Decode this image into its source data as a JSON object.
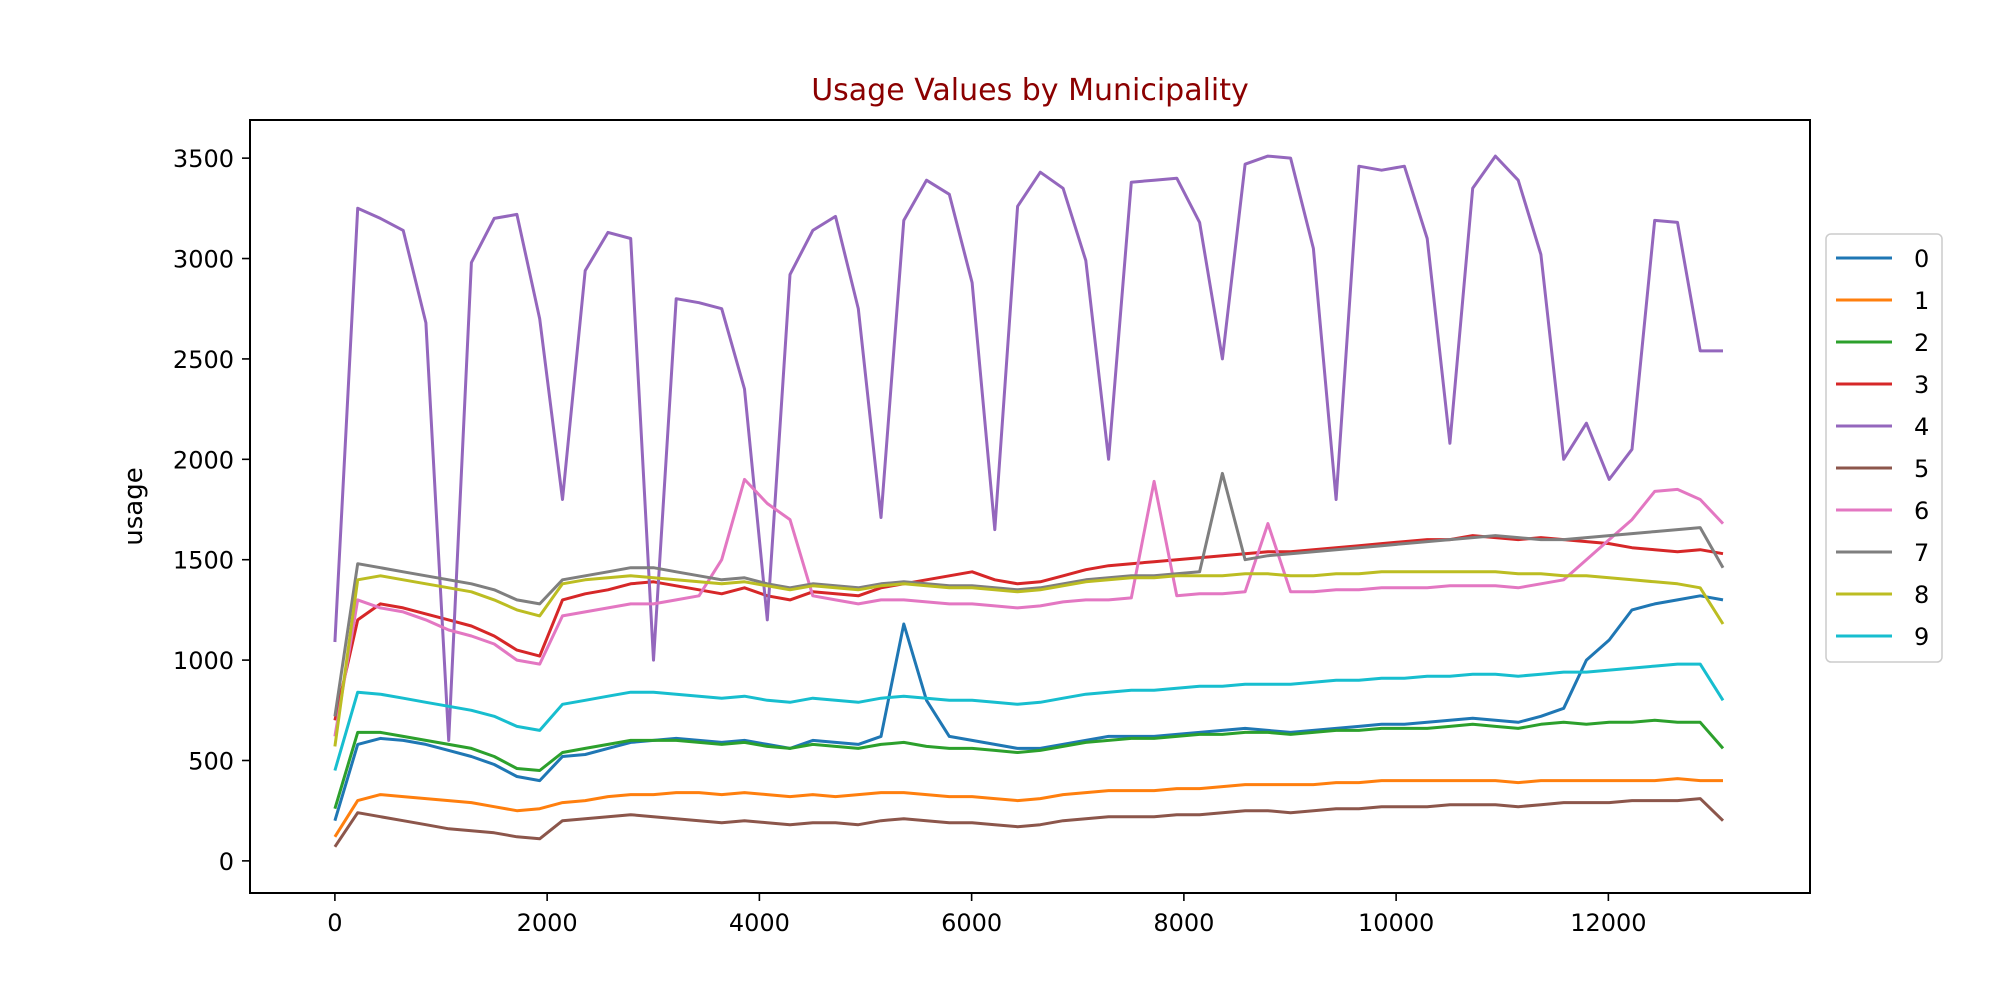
{
  "chart_data": {
    "type": "line",
    "title": "Usage Values by Municipality",
    "title_color": "#8b0000",
    "xlabel": "",
    "ylabel": "usage",
    "xlim": [
      -800,
      13900
    ],
    "ylim": [
      -160,
      3690
    ],
    "x_ticks": [
      0,
      2000,
      4000,
      6000,
      8000,
      10000,
      12000
    ],
    "y_ticks": [
      0,
      500,
      1000,
      1500,
      2000,
      2500,
      3000,
      3500
    ],
    "legend_position": "right-outside",
    "grid": false,
    "x_max_data": 13080,
    "series": [
      {
        "name": "0",
        "color": "#1f77b4",
        "values": [
          200,
          580,
          610,
          600,
          580,
          550,
          520,
          480,
          420,
          400,
          520,
          530,
          560,
          590,
          600,
          610,
          600,
          590,
          600,
          580,
          560,
          600,
          590,
          580,
          620,
          1180,
          800,
          620,
          600,
          580,
          560,
          560,
          580,
          600,
          620,
          620,
          620,
          630,
          640,
          650,
          660,
          650,
          640,
          650,
          660,
          670,
          680,
          680,
          690,
          700,
          710,
          700,
          690,
          720,
          760,
          1000,
          1100,
          1250,
          1280,
          1300,
          1320,
          1300
        ]
      },
      {
        "name": "1",
        "color": "#ff7f0e",
        "values": [
          120,
          300,
          330,
          320,
          310,
          300,
          290,
          270,
          250,
          260,
          290,
          300,
          320,
          330,
          330,
          340,
          340,
          330,
          340,
          330,
          320,
          330,
          320,
          330,
          340,
          340,
          330,
          320,
          320,
          310,
          300,
          310,
          330,
          340,
          350,
          350,
          350,
          360,
          360,
          370,
          380,
          380,
          380,
          380,
          390,
          390,
          400,
          400,
          400,
          400,
          400,
          400,
          390,
          400,
          400,
          400,
          400,
          400,
          400,
          410,
          400,
          400
        ]
      },
      {
        "name": "2",
        "color": "#2ca02c",
        "values": [
          260,
          640,
          640,
          620,
          600,
          580,
          560,
          520,
          460,
          450,
          540,
          560,
          580,
          600,
          600,
          600,
          590,
          580,
          590,
          570,
          560,
          580,
          570,
          560,
          580,
          590,
          570,
          560,
          560,
          550,
          540,
          550,
          570,
          590,
          600,
          610,
          610,
          620,
          630,
          630,
          640,
          640,
          630,
          640,
          650,
          650,
          660,
          660,
          660,
          670,
          680,
          670,
          660,
          680,
          690,
          680,
          690,
          690,
          700,
          690,
          690,
          560
        ]
      },
      {
        "name": "3",
        "color": "#d62728",
        "values": [
          700,
          1200,
          1280,
          1260,
          1230,
          1200,
          1170,
          1120,
          1050,
          1020,
          1300,
          1330,
          1350,
          1380,
          1390,
          1370,
          1350,
          1330,
          1360,
          1320,
          1300,
          1340,
          1330,
          1320,
          1360,
          1380,
          1400,
          1420,
          1440,
          1400,
          1380,
          1390,
          1420,
          1450,
          1470,
          1480,
          1490,
          1500,
          1510,
          1520,
          1530,
          1540,
          1540,
          1550,
          1560,
          1570,
          1580,
          1590,
          1600,
          1600,
          1620,
          1610,
          1600,
          1610,
          1600,
          1590,
          1580,
          1560,
          1550,
          1540,
          1550,
          1530
        ]
      },
      {
        "name": "4",
        "color": "#9467bd",
        "values": [
          1090,
          3250,
          3200,
          3140,
          2680,
          600,
          2980,
          3200,
          3220,
          2700,
          1800,
          2940,
          3130,
          3100,
          1000,
          2800,
          2780,
          2750,
          2350,
          1200,
          2920,
          3140,
          3210,
          2750,
          1710,
          3190,
          3390,
          3320,
          2880,
          1650,
          3260,
          3430,
          3350,
          2990,
          2000,
          3380,
          3390,
          3400,
          3180,
          2500,
          3470,
          3510,
          3500,
          3050,
          1800,
          3460,
          3440,
          3460,
          3100,
          2080,
          3350,
          3510,
          3390,
          3020,
          2000,
          2180,
          1900,
          2050,
          3190,
          3180,
          2540,
          2540
        ]
      },
      {
        "name": "5",
        "color": "#8c564b",
        "values": [
          70,
          240,
          220,
          200,
          180,
          160,
          150,
          140,
          120,
          110,
          200,
          210,
          220,
          230,
          220,
          210,
          200,
          190,
          200,
          190,
          180,
          190,
          190,
          180,
          200,
          210,
          200,
          190,
          190,
          180,
          170,
          180,
          200,
          210,
          220,
          220,
          220,
          230,
          230,
          240,
          250,
          250,
          240,
          250,
          260,
          260,
          270,
          270,
          270,
          280,
          280,
          280,
          270,
          280,
          290,
          290,
          290,
          300,
          300,
          300,
          310,
          200
        ]
      },
      {
        "name": "6",
        "color": "#e377c2",
        "values": [
          620,
          1300,
          1260,
          1240,
          1200,
          1150,
          1120,
          1080,
          1000,
          980,
          1220,
          1240,
          1260,
          1280,
          1280,
          1300,
          1320,
          1500,
          1900,
          1780,
          1700,
          1320,
          1300,
          1280,
          1300,
          1300,
          1290,
          1280,
          1280,
          1270,
          1260,
          1270,
          1290,
          1300,
          1300,
          1310,
          1890,
          1320,
          1330,
          1330,
          1340,
          1680,
          1340,
          1340,
          1350,
          1350,
          1360,
          1360,
          1360,
          1370,
          1370,
          1370,
          1360,
          1380,
          1400,
          1500,
          1600,
          1700,
          1840,
          1850,
          1800,
          1680
        ]
      },
      {
        "name": "7",
        "color": "#7f7f7f",
        "values": [
          720,
          1480,
          1460,
          1440,
          1420,
          1400,
          1380,
          1350,
          1300,
          1280,
          1400,
          1420,
          1440,
          1460,
          1460,
          1440,
          1420,
          1400,
          1410,
          1380,
          1360,
          1380,
          1370,
          1360,
          1380,
          1390,
          1380,
          1370,
          1370,
          1360,
          1350,
          1360,
          1380,
          1400,
          1410,
          1420,
          1420,
          1430,
          1440,
          1930,
          1500,
          1520,
          1530,
          1540,
          1550,
          1560,
          1570,
          1580,
          1590,
          1600,
          1610,
          1620,
          1610,
          1600,
          1600,
          1610,
          1620,
          1630,
          1640,
          1650,
          1660,
          1460
        ]
      },
      {
        "name": "8",
        "color": "#bcbd22",
        "values": [
          570,
          1400,
          1420,
          1400,
          1380,
          1360,
          1340,
          1300,
          1250,
          1220,
          1380,
          1400,
          1410,
          1420,
          1410,
          1400,
          1390,
          1380,
          1390,
          1370,
          1350,
          1370,
          1360,
          1350,
          1370,
          1380,
          1370,
          1360,
          1360,
          1350,
          1340,
          1350,
          1370,
          1390,
          1400,
          1410,
          1410,
          1420,
          1420,
          1420,
          1430,
          1430,
          1420,
          1420,
          1430,
          1430,
          1440,
          1440,
          1440,
          1440,
          1440,
          1440,
          1430,
          1430,
          1420,
          1420,
          1410,
          1400,
          1390,
          1380,
          1360,
          1180
        ]
      },
      {
        "name": "9",
        "color": "#17becf",
        "values": [
          450,
          840,
          830,
          810,
          790,
          770,
          750,
          720,
          670,
          650,
          780,
          800,
          820,
          840,
          840,
          830,
          820,
          810,
          820,
          800,
          790,
          810,
          800,
          790,
          810,
          820,
          810,
          800,
          800,
          790,
          780,
          790,
          810,
          830,
          840,
          850,
          850,
          860,
          870,
          870,
          880,
          880,
          880,
          890,
          900,
          900,
          910,
          910,
          920,
          920,
          930,
          930,
          920,
          930,
          940,
          940,
          950,
          960,
          970,
          980,
          980,
          800
        ]
      }
    ]
  }
}
